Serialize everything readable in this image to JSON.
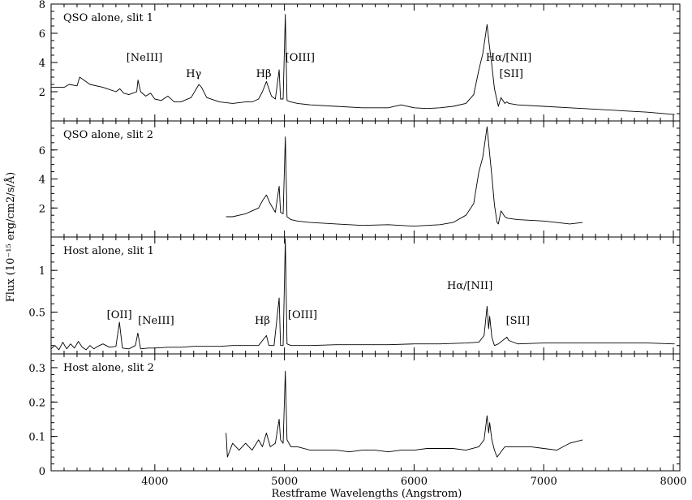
{
  "chart_data": {
    "type": "line",
    "xlabel": "Restframe Wavelengths (Angstrom)",
    "ylabel": "Flux (10⁻¹⁵ erg/cm2/s/Å)",
    "xlim": [
      3200,
      8050
    ],
    "xticks": [
      4000,
      5000,
      6000,
      7000,
      8000
    ],
    "panels": [
      {
        "title": "QSO alone, slit 1",
        "ylim": [
          0,
          8
        ],
        "yticks": [
          2,
          4,
          6,
          8
        ],
        "ytick_labels": [
          "2",
          "4",
          "6",
          "8"
        ],
        "annotations": [
          {
            "text": "[NeIII]",
            "x": 3920,
            "y": 4.1
          },
          {
            "text": "Hγ",
            "x": 4300,
            "y": 3.0
          },
          {
            "text": "Hβ",
            "x": 4840,
            "y": 3.0
          },
          {
            "text": "[OIII]",
            "x": 5120,
            "y": 4.1
          },
          {
            "text": "Hα/[NII]",
            "x": 6730,
            "y": 4.1
          },
          {
            "text": "[SII]",
            "x": 6750,
            "y": 3.0
          }
        ],
        "series": [
          {
            "x": [
              3200,
              3300,
              3340,
              3400,
              3420,
              3500,
              3600,
              3700,
              3730,
              3760,
              3800,
              3860,
              3870,
              3890,
              3930,
              3967,
              4000,
              4050,
              4101,
              4150,
              4200,
              4280,
              4320,
              4340,
              4360,
              4400,
              4500,
              4600,
              4700,
              4750,
              4800,
              4830,
              4861,
              4880,
              4900,
              4930,
              4959,
              4970,
              4990,
              5007,
              5020,
              5050,
              5100,
              5200,
              5400,
              5600,
              5800,
              5900,
              6000,
              6100,
              6200,
              6300,
              6400,
              6460,
              6500,
              6530,
              6563,
              6580,
              6600,
              6620,
              6650,
              6670,
              6700,
              6716,
              6731,
              6800,
              7000,
              7200,
              7400,
              7600,
              7800,
              8000,
              8010
            ],
            "y": [
              2.3,
              2.3,
              2.5,
              2.4,
              3.0,
              2.5,
              2.3,
              2.0,
              2.2,
              1.9,
              1.8,
              2.0,
              2.8,
              2.0,
              1.7,
              1.9,
              1.5,
              1.4,
              1.7,
              1.3,
              1.3,
              1.6,
              2.2,
              2.5,
              2.3,
              1.6,
              1.3,
              1.2,
              1.3,
              1.3,
              1.5,
              2.0,
              2.7,
              2.2,
              1.7,
              1.5,
              3.5,
              1.5,
              1.5,
              7.3,
              1.4,
              1.3,
              1.2,
              1.1,
              1.0,
              0.9,
              0.9,
              1.1,
              0.9,
              0.85,
              0.9,
              1.0,
              1.2,
              1.8,
              3.5,
              4.6,
              6.6,
              5.2,
              3.8,
              2.2,
              1.0,
              1.6,
              1.2,
              1.3,
              1.2,
              1.1,
              1.0,
              0.9,
              0.8,
              0.7,
              0.6,
              0.45,
              0.45
            ]
          }
        ]
      },
      {
        "title": "QSO alone, slit 2",
        "ylim": [
          0,
          8
        ],
        "yticks": [
          2,
          4,
          6
        ],
        "ytick_labels": [
          "2",
          "4",
          "6"
        ],
        "annotations": [],
        "series": [
          {
            "x": [
              4550,
              4600,
              4650,
              4700,
              4750,
              4800,
              4830,
              4861,
              4890,
              4930,
              4959,
              4970,
              4990,
              5007,
              5020,
              5050,
              5100,
              5200,
              5400,
              5600,
              5800,
              6000,
              6100,
              6200,
              6300,
              6400,
              6460,
              6500,
              6530,
              6563,
              6580,
              6600,
              6620,
              6640,
              6650,
              6670,
              6700,
              6720,
              6800,
              7000,
              7100,
              7200,
              7300
            ],
            "y": [
              1.4,
              1.4,
              1.5,
              1.6,
              1.8,
              2.0,
              2.5,
              2.9,
              2.3,
              1.7,
              3.5,
              1.7,
              1.6,
              6.9,
              1.4,
              1.2,
              1.1,
              1.0,
              0.9,
              0.8,
              0.85,
              0.75,
              0.8,
              0.85,
              1.0,
              1.5,
              2.3,
              4.5,
              5.5,
              7.6,
              6.0,
              4.2,
              2.2,
              1.0,
              0.9,
              1.8,
              1.4,
              1.3,
              1.2,
              1.1,
              1.0,
              0.9,
              1.0
            ]
          }
        ]
      },
      {
        "title": "Host alone, slit 1",
        "ylim": [
          0,
          1.4
        ],
        "yticks": [
          0.5,
          1
        ],
        "ytick_labels": [
          "0.5",
          "1"
        ],
        "annotations": [
          {
            "text": "[OII]",
            "x": 3727,
            "y": 0.43
          },
          {
            "text": "[NeIII]",
            "x": 4010,
            "y": 0.36
          },
          {
            "text": "Hβ",
            "x": 4830,
            "y": 0.36
          },
          {
            "text": "[OIII]",
            "x": 5140,
            "y": 0.43
          },
          {
            "text": "Hα/[NII]",
            "x": 6430,
            "y": 0.78
          },
          {
            "text": "[SII]",
            "x": 6800,
            "y": 0.36
          }
        ],
        "series": [
          {
            "x": [
              3200,
              3230,
              3260,
              3290,
              3320,
              3350,
              3380,
              3410,
              3440,
              3470,
              3500,
              3530,
              3560,
              3600,
              3650,
              3700,
              3727,
              3750,
              3800,
              3850,
              3869,
              3890,
              3950,
              4000,
              4100,
              4200,
              4300,
              4400,
              4500,
              4600,
              4700,
              4800,
              4861,
              4880,
              4920,
              4959,
              4970,
              4990,
              5007,
              5020,
              5050,
              5100,
              5200,
              5400,
              5600,
              5800,
              6000,
              6200,
              6400,
              6500,
              6540,
              6563,
              6575,
              6583,
              6600,
              6620,
              6650,
              6716,
              6731,
              6800,
              7000,
              7200,
              7400,
              7600,
              7800,
              8000,
              8010
            ],
            "y": [
              0.06,
              0.1,
              0.05,
              0.14,
              0.06,
              0.12,
              0.07,
              0.15,
              0.08,
              0.05,
              0.1,
              0.06,
              0.09,
              0.12,
              0.08,
              0.09,
              0.38,
              0.07,
              0.06,
              0.1,
              0.25,
              0.06,
              0.07,
              0.07,
              0.08,
              0.08,
              0.09,
              0.09,
              0.09,
              0.1,
              0.1,
              0.1,
              0.22,
              0.1,
              0.1,
              0.67,
              0.1,
              0.1,
              1.38,
              0.12,
              0.1,
              0.1,
              0.1,
              0.11,
              0.11,
              0.11,
              0.12,
              0.12,
              0.13,
              0.14,
              0.22,
              0.57,
              0.3,
              0.45,
              0.2,
              0.1,
              0.12,
              0.2,
              0.16,
              0.12,
              0.13,
              0.13,
              0.13,
              0.13,
              0.13,
              0.12,
              0.12
            ]
          }
        ]
      },
      {
        "title": "Host alone, slit 2",
        "ylim": [
          0,
          0.34
        ],
        "yticks": [
          0,
          0.1,
          0.2,
          0.3
        ],
        "ytick_labels": [
          "0",
          "0.1",
          "0.2",
          "0.3"
        ],
        "annotations": [],
        "series": [
          {
            "x": [
              4550,
              4560,
              4600,
              4650,
              4700,
              4750,
              4800,
              4830,
              4861,
              4890,
              4930,
              4959,
              4970,
              4990,
              5007,
              5020,
              5050,
              5100,
              5200,
              5300,
              5400,
              5500,
              5600,
              5700,
              5800,
              5900,
              6000,
              6100,
              6200,
              6300,
              6400,
              6500,
              6540,
              6563,
              6575,
              6583,
              6600,
              6620,
              6640,
              6680,
              6700,
              6800,
              6900,
              7000,
              7100,
              7200,
              7300
            ],
            "y": [
              0.11,
              0.04,
              0.08,
              0.06,
              0.08,
              0.06,
              0.09,
              0.07,
              0.11,
              0.07,
              0.08,
              0.15,
              0.09,
              0.08,
              0.29,
              0.09,
              0.07,
              0.07,
              0.06,
              0.06,
              0.06,
              0.055,
              0.06,
              0.06,
              0.055,
              0.06,
              0.06,
              0.065,
              0.065,
              0.065,
              0.06,
              0.07,
              0.09,
              0.16,
              0.11,
              0.14,
              0.09,
              0.06,
              0.04,
              0.06,
              0.07,
              0.07,
              0.07,
              0.065,
              0.06,
              0.08,
              0.09
            ]
          }
        ]
      }
    ]
  }
}
